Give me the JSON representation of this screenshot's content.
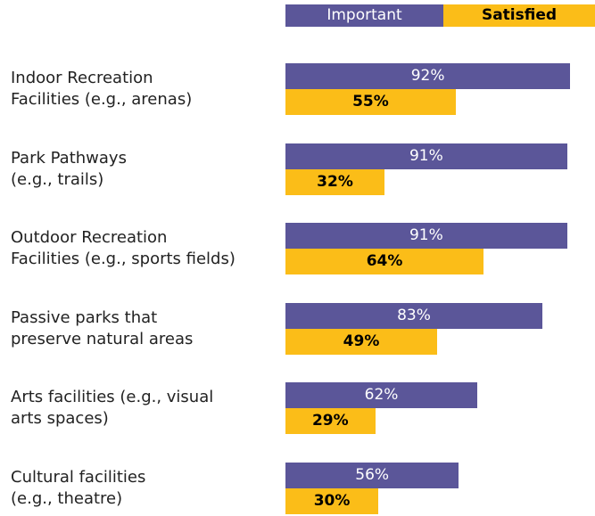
{
  "chart_data": {
    "type": "bar",
    "orientation": "horizontal",
    "categories": [
      "Indoor Recreation\nFacilities (e.g., arenas)",
      "Park Pathways\n(e.g., trails)",
      "Outdoor Recreation\nFacilities (e.g., sports fields)",
      "Passive parks that\npreserve natural areas",
      "Arts facilities (e.g., visual\narts spaces)",
      "Cultural facilities\n(e.g., theatre)"
    ],
    "series": [
      {
        "name": "Important",
        "color": "#5b5699",
        "values": [
          92,
          91,
          91,
          83,
          62,
          56
        ],
        "value_labels": [
          "92%",
          "91%",
          "91%",
          "83%",
          "62%",
          "56%"
        ]
      },
      {
        "name": "Satisfied",
        "color": "#fbbd18",
        "values": [
          55,
          32,
          64,
          49,
          29,
          30
        ],
        "value_labels": [
          "55%",
          "32%",
          "64%",
          "49%",
          "29%",
          "30%"
        ]
      }
    ],
    "legend": "top"
  }
}
